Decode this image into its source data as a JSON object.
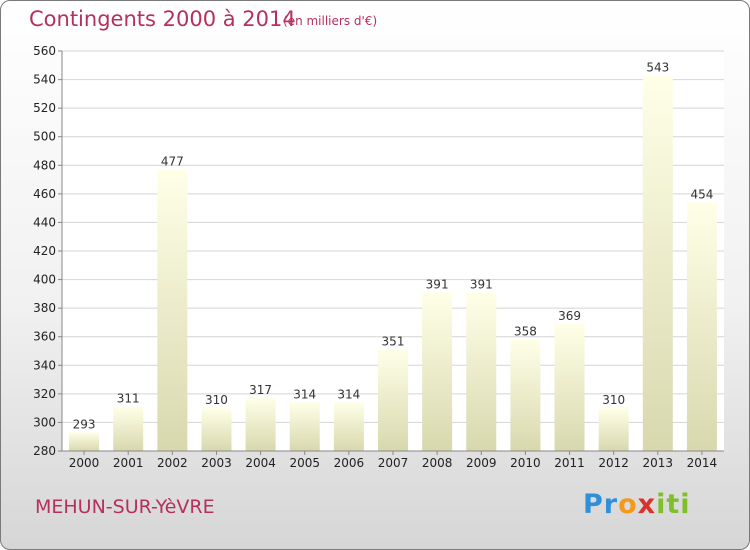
{
  "header": {
    "title": "Contingents 2000 à 2014",
    "unit": "(en milliers d'€)"
  },
  "footer": {
    "place": "MEHUN-SUR-YèVRE",
    "logo_parts": [
      "Pr",
      "o",
      "x",
      "iti"
    ]
  },
  "colors": {
    "title": "#b5305f",
    "bar_light": "#ffffe6",
    "bar_dark": "#d9d9b0",
    "grid": "#d4d4d4"
  },
  "chart_data": {
    "type": "bar",
    "title": "Contingents 2000 à 2014",
    "xlabel": "",
    "ylabel": "",
    "ylim": [
      280,
      560
    ],
    "yticks": [
      280,
      300,
      320,
      340,
      360,
      380,
      400,
      420,
      440,
      460,
      480,
      500,
      520,
      540,
      560
    ],
    "grid": true,
    "categories": [
      "2000",
      "2001",
      "2002",
      "2003",
      "2004",
      "2005",
      "2006",
      "2007",
      "2008",
      "2009",
      "2010",
      "2011",
      "2012",
      "2013",
      "2014"
    ],
    "values": [
      293,
      311,
      477,
      310,
      317,
      314,
      314,
      351,
      391,
      391,
      358,
      369,
      310,
      543,
      454
    ]
  }
}
